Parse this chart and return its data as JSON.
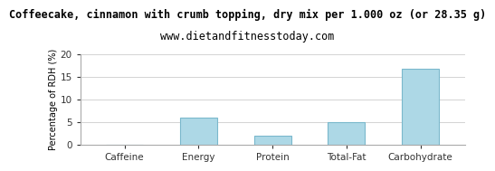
{
  "title": "Coffeecake, cinnamon with crumb topping, dry mix per 1.000 oz (or 28.35 g)",
  "subtitle": "www.dietandfitnesstoday.com",
  "categories": [
    "Caffeine",
    "Energy",
    "Protein",
    "Total-Fat",
    "Carbohydrate"
  ],
  "values": [
    0,
    6.0,
    2.0,
    5.0,
    16.8
  ],
  "bar_color": "#add8e6",
  "ylabel": "Percentage of RDH (%)",
  "ylim": [
    0,
    20
  ],
  "yticks": [
    0,
    5,
    10,
    15,
    20
  ],
  "title_fontsize": 8.5,
  "subtitle_fontsize": 8.5,
  "ylabel_fontsize": 7,
  "tick_fontsize": 7.5,
  "background_color": "#ffffff",
  "bar_edge_color": "#7ab8cc",
  "grid_color": "#cccccc",
  "spine_color": "#aaaaaa"
}
